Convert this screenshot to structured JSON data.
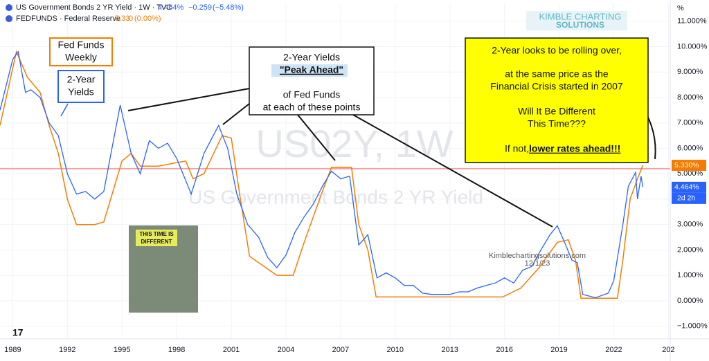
{
  "chart_data": {
    "type": "line",
    "header": {
      "symbol": "US Government Bonds 2 YR Yield · 1W · TVC",
      "last": "4.464%",
      "change": "−0.259",
      "change_pct": "(−5.48%)",
      "symbol2": "FEDFUNDS · Federal Reserve",
      "last2": "5.33",
      "change2": "0",
      "change2_pct": "(0.00%)"
    },
    "logo": [
      "KIMBLE CHARTING",
      "SOLUTIONS"
    ],
    "watermark": [
      "US02Y, 1W",
      "US Government Bonds 2 YR Yield"
    ],
    "credit": [
      "Kimblechartingsolutions.com",
      "12/1/23"
    ],
    "axis_unit": "%",
    "annotations": {
      "fed_funds": [
        "Fed Funds",
        "Weekly"
      ],
      "two_year": [
        "2-Year",
        "Yields"
      ],
      "peak": [
        "2-Year Yields",
        "\"Peak Ahead\"",
        "of Fed Funds",
        "at each of these points"
      ],
      "rolling": [
        "2-Year looks to be rolling over,",
        "at the same price as the",
        "Financial Crisis started in 2007",
        "Will It Be Different",
        "This Time???",
        "If not, ",
        "lower rates ahead!!!"
      ],
      "book": [
        "THIS TIME IS",
        "DIFFERENT"
      ]
    },
    "xlim": [
      1988.3,
      2025.1
    ],
    "xticks": [
      1989,
      1992,
      1995,
      1998,
      2001,
      2004,
      2007,
      2010,
      2013,
      2016,
      2019,
      2022,
      {
        "value": 2025,
        "label": "202"
      }
    ],
    "ylim": [
      -1.5,
      11.7
    ],
    "yticks": [
      {
        "value": -1,
        "label": "−1.000%"
      },
      {
        "value": 0,
        "label": "0.000%"
      },
      {
        "value": 1,
        "label": "1.000%"
      },
      {
        "value": 2,
        "label": "2.000%"
      },
      {
        "value": 3,
        "label": "3.000%"
      },
      {
        "value": 4,
        "label": "4.000%"
      },
      {
        "value": 5,
        "label": "5.000%"
      },
      {
        "value": 6,
        "label": "6.000%"
      },
      {
        "value": 7,
        "label": "7.000%"
      },
      {
        "value": 8,
        "label": "8.000%"
      },
      {
        "value": 9,
        "label": "9.000%"
      },
      {
        "value": 10,
        "label": "10.000%"
      },
      {
        "value": 11,
        "label": "11.000%"
      }
    ],
    "hline": 5.2,
    "hline_color": "#f4a0a0",
    "series": [
      {
        "name": "US02Y",
        "color": "#2962ff",
        "last": {
          "value": 4.464,
          "label": "4.464%"
        },
        "countdown": "2d 2h",
        "x": [
          1988.3,
          1989.0,
          1989.3,
          1989.7,
          1990.0,
          1990.5,
          1991.0,
          1991.5,
          1992.0,
          1992.5,
          1993.0,
          1993.5,
          1994.0,
          1994.5,
          1994.9,
          1995.5,
          1996.0,
          1996.5,
          1997.0,
          1997.5,
          1998.0,
          1998.8,
          1999.5,
          2000.3,
          2000.8,
          2001.3,
          2001.9,
          2002.5,
          2003.0,
          2003.5,
          2004.0,
          2004.5,
          2005.0,
          2005.5,
          2006.0,
          2006.5,
          2007.0,
          2007.5,
          2008.0,
          2008.5,
          2009.0,
          2009.5,
          2010.0,
          2010.5,
          2011.0,
          2011.5,
          2012.0,
          2013.0,
          2013.5,
          2014.0,
          2014.5,
          2015.0,
          2015.5,
          2016.0,
          2016.5,
          2017.0,
          2017.5,
          2018.0,
          2018.5,
          2018.9,
          2019.3,
          2019.7,
          2020.0,
          2020.3,
          2021.0,
          2021.7,
          2022.0,
          2022.5,
          2022.8,
          2023.2,
          2023.3,
          2023.5,
          2023.6
        ],
        "values": [
          7.5,
          9.5,
          9.8,
          8.2,
          8.3,
          8.0,
          7.0,
          6.5,
          5.0,
          4.2,
          4.3,
          4.0,
          4.3,
          6.2,
          7.7,
          5.8,
          5.0,
          6.3,
          6.0,
          6.2,
          5.6,
          4.2,
          5.8,
          6.9,
          6.0,
          4.2,
          3.0,
          2.5,
          1.7,
          1.3,
          1.8,
          2.7,
          3.3,
          3.8,
          4.5,
          5.1,
          4.8,
          4.9,
          2.2,
          2.6,
          0.9,
          1.1,
          0.9,
          0.6,
          0.6,
          0.3,
          0.25,
          0.25,
          0.35,
          0.35,
          0.5,
          0.6,
          0.7,
          0.9,
          0.7,
          1.2,
          1.35,
          2.0,
          2.6,
          2.95,
          2.3,
          1.6,
          1.5,
          0.25,
          0.12,
          0.3,
          0.8,
          3.0,
          4.5,
          5.05,
          4.0,
          4.9,
          4.464
        ]
      },
      {
        "name": "FEDFUNDS",
        "color": "#f57c00",
        "last": {
          "value": 5.33,
          "label": "5.330%"
        },
        "x": [
          1988.3,
          1989.2,
          1989.8,
          1990.5,
          1991.0,
          1991.5,
          1992.0,
          1992.5,
          1993.5,
          1994.0,
          1994.5,
          1995.0,
          1995.5,
          1996.0,
          1997.0,
          1998.5,
          1998.9,
          1999.5,
          2000.5,
          2001.0,
          2001.5,
          2002.0,
          2003.0,
          2003.5,
          2004.4,
          2005.0,
          2006.0,
          2006.5,
          2007.6,
          2008.0,
          2008.5,
          2008.95,
          2015.9,
          2016.9,
          2017.9,
          2018.9,
          2019.5,
          2019.9,
          2020.2,
          2022.2,
          2022.5,
          2022.9,
          2023.3,
          2023.6
        ],
        "values": [
          6.9,
          9.8,
          8.8,
          8.2,
          6.9,
          5.8,
          4.0,
          3.0,
          3.0,
          3.1,
          4.3,
          5.5,
          5.8,
          5.3,
          5.3,
          5.5,
          4.8,
          5.0,
          6.5,
          6.4,
          4.0,
          1.75,
          1.25,
          1.0,
          1.0,
          2.3,
          4.3,
          5.25,
          5.25,
          3.0,
          2.0,
          0.15,
          0.15,
          0.5,
          1.3,
          2.3,
          2.4,
          1.6,
          0.1,
          0.1,
          1.6,
          4.0,
          4.8,
          5.33
        ]
      }
    ]
  }
}
